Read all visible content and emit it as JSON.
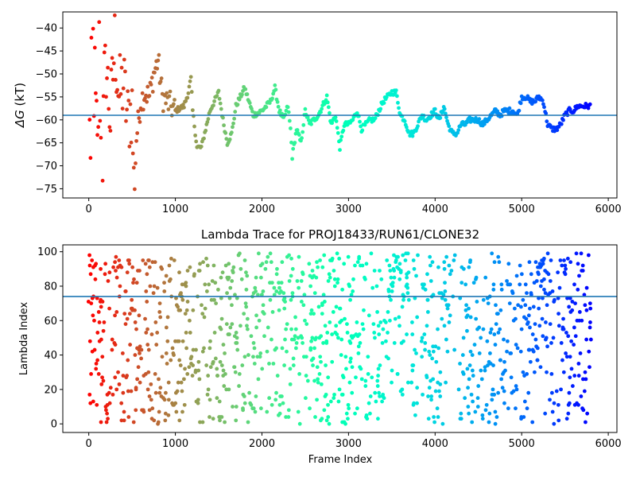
{
  "chart_data": [
    {
      "type": "scatter",
      "title": "",
      "xlabel": "",
      "ylabel": "ΔG (kT)",
      "ylabel_parts": {
        "symbol": "ΔG",
        "unit": " (kT)"
      },
      "xlim": [
        -300,
        6100
      ],
      "ylim": [
        -77,
        -36.5
      ],
      "xticks": [
        0,
        1000,
        2000,
        3000,
        4000,
        5000,
        6000
      ],
      "yticks": [
        -75,
        -70,
        -65,
        -60,
        -55,
        -50,
        -45,
        -40
      ],
      "reference_line_y": -59,
      "reference_line_color": "#1f77b4",
      "colormap": "rainbow (red at frame 0 → violet at last frame)",
      "n_frames": 5800,
      "series": [
        {
          "frame": [
            0,
            20,
            40,
            60,
            80,
            100,
            120,
            150,
            180,
            200,
            250,
            300,
            350,
            400,
            450,
            500,
            520,
            550,
            600,
            650,
            700,
            750,
            800,
            850,
            900,
            1000,
            1100,
            1150,
            1180,
            1200,
            1250,
            1300,
            1350,
            1400,
            1450,
            1500,
            1550,
            1600,
            1650,
            1700,
            1750,
            1800,
            1900,
            2000,
            2100,
            2150,
            2200,
            2250,
            2300,
            2330,
            2350,
            2400,
            2450,
            2500,
            2550,
            2600,
            2650,
            2700,
            2750,
            2800,
            2850,
            2900,
            2950,
            3000,
            3050,
            3100,
            3150,
            3200,
            3250,
            3300,
            3350,
            3400,
            3450,
            3500,
            3550,
            3600,
            3650,
            3700,
            3750,
            3800,
            3850,
            3900,
            3950,
            4000,
            4050,
            4100,
            4150,
            4200,
            4250,
            4300,
            4350,
            4400,
            4450,
            4500,
            4550,
            4600,
            4650,
            4700,
            4750,
            4800,
            4850,
            4900,
            4950,
            5000,
            5050,
            5100,
            5150,
            5200,
            5250,
            5300,
            5350,
            5400,
            5450,
            5500,
            5550,
            5600,
            5650,
            5700,
            5750,
            5800
          ],
          "dg": [
            -37,
            -72,
            -40,
            -50,
            -60,
            -70,
            -44,
            -76,
            -52,
            -48,
            -60,
            -43,
            -55,
            -52,
            -60,
            -57,
            -74,
            -64,
            -56,
            -54,
            -55,
            -50,
            -47,
            -55,
            -56,
            -58,
            -57,
            -54,
            -51,
            -58,
            -66,
            -66,
            -62,
            -58,
            -56,
            -54,
            -60,
            -65,
            -63,
            -57,
            -55,
            -53,
            -59,
            -58,
            -56,
            -53,
            -58,
            -60,
            -57,
            -62,
            -68,
            -62,
            -65,
            -58,
            -61,
            -60,
            -59,
            -57,
            -55,
            -61,
            -59,
            -66,
            -61,
            -61,
            -60,
            -58,
            -62,
            -61,
            -60,
            -60,
            -58,
            -56,
            -55,
            -54,
            -54,
            -59,
            -60,
            -63,
            -63,
            -61,
            -59,
            -60,
            -59,
            -58,
            -60,
            -57,
            -61,
            -63,
            -63,
            -61,
            -61,
            -60,
            -60,
            -60,
            -61,
            -60,
            -59,
            -58,
            -59,
            -58,
            -58,
            -58,
            -59,
            -55,
            -55,
            -56,
            -56,
            -55,
            -56,
            -61,
            -62,
            -62,
            -61,
            -59,
            -58,
            -58,
            -57,
            -57,
            -57,
            -57
          ]
        }
      ]
    },
    {
      "type": "scatter",
      "title": "Lambda Trace for PROJ18433/RUN61/CLONE32",
      "xlabel": "Frame Index",
      "ylabel": "Lambda Index",
      "xlim": [
        -300,
        6100
      ],
      "ylim": [
        -5,
        104
      ],
      "xticks": [
        0,
        1000,
        2000,
        3000,
        4000,
        5000,
        6000
      ],
      "yticks": [
        0,
        20,
        40,
        60,
        80,
        100
      ],
      "reference_line_y": 74,
      "reference_line_color": "#1f77b4",
      "colormap": "rainbow (red at frame 0 → violet at last frame)",
      "n_frames": 5800,
      "lambda_range": [
        0,
        99
      ],
      "gap_intervals": [
        [
          3700,
          3720
        ],
        [
          3800,
          3840
        ],
        [
          4230,
          4270
        ],
        [
          4960,
          4975
        ],
        [
          5380,
          5400
        ]
      ],
      "high_lambda_clusters": [
        [
          3450,
          3700,
          70,
          99
        ],
        [
          4060,
          4240,
          65,
          99
        ],
        [
          5180,
          5350,
          72,
          99
        ]
      ]
    }
  ]
}
